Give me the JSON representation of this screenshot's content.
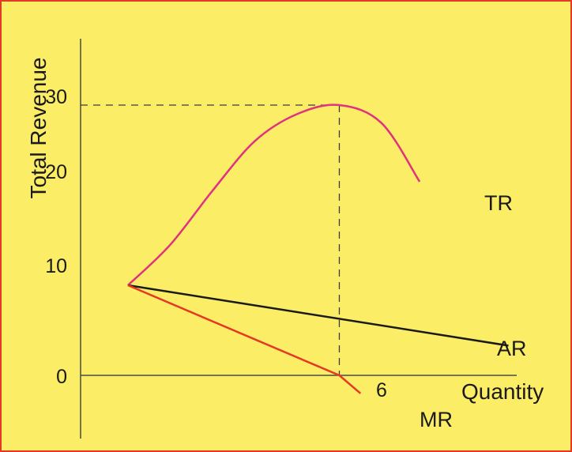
{
  "colors": {
    "background": "#fbee66",
    "border": "#e43a25",
    "axis": "#4a4a4a",
    "guide": "#3a3a3a"
  },
  "chart_data": {
    "type": "line",
    "title": "",
    "ylabel": "Total Revenue",
    "xlabel": "Quantity",
    "grid": false,
    "y_ticks": [
      "0",
      "10",
      "20",
      "30"
    ],
    "x_ticks": [
      "6"
    ],
    "reference_lines": {
      "horizontal_at_y": 30,
      "vertical_at_x": 6
    },
    "series": [
      {
        "name": "TR",
        "color": "#e0327e",
        "x": [
          1,
          2,
          3,
          4,
          5,
          6,
          7,
          7.9
        ],
        "y": [
          10,
          14.5,
          20.5,
          26,
          29,
          30,
          28,
          21.5
        ]
      },
      {
        "name": "AR",
        "color": "#1a1a1a",
        "x": [
          1,
          10
        ],
        "y": [
          10,
          3.3
        ]
      },
      {
        "name": "MR",
        "color": "#e43a25",
        "x": [
          1,
          6,
          6.5
        ],
        "y": [
          10,
          0,
          -2
        ]
      }
    ]
  }
}
